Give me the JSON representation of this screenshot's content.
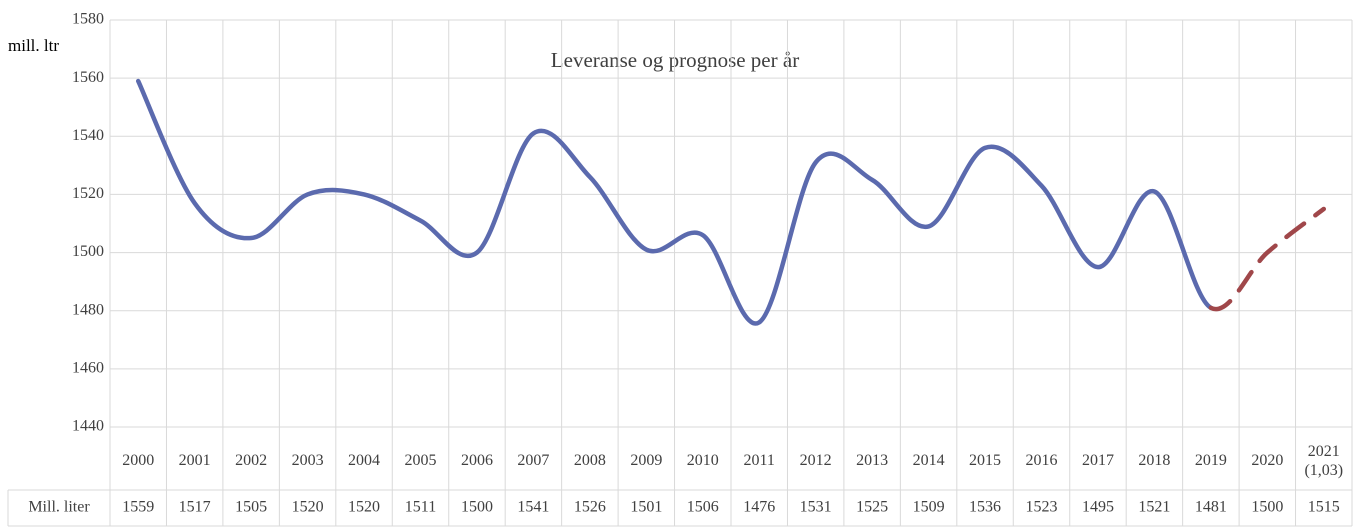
{
  "chart_data": {
    "type": "line",
    "title": "Leveranse og prognose per år",
    "y_label": "mill. ltr",
    "categories": [
      "2000",
      "2001",
      "2002",
      "2003",
      "2004",
      "2005",
      "2006",
      "2007",
      "2008",
      "2009",
      "2010",
      "2011",
      "2012",
      "2013",
      "2014",
      "2015",
      "2016",
      "2017",
      "2018",
      "2019",
      "2020",
      "2021\n(1,03)"
    ],
    "series": [
      {
        "name": "Mill. liter",
        "color": "#5b6aae",
        "dash_color": "#a0474a",
        "dashed_from": "2019",
        "values": [
          1559,
          1517,
          1505,
          1520,
          1520,
          1511,
          1500,
          1541,
          1526,
          1501,
          1506,
          1476,
          1531,
          1525,
          1509,
          1536,
          1523,
          1495,
          1521,
          1481,
          1500,
          1515
        ]
      }
    ],
    "ylim": [
      1440,
      1580
    ],
    "yticks": [
      1440,
      1460,
      1480,
      1500,
      1520,
      1540,
      1560,
      1580
    ],
    "grid": true,
    "data_table": true
  }
}
